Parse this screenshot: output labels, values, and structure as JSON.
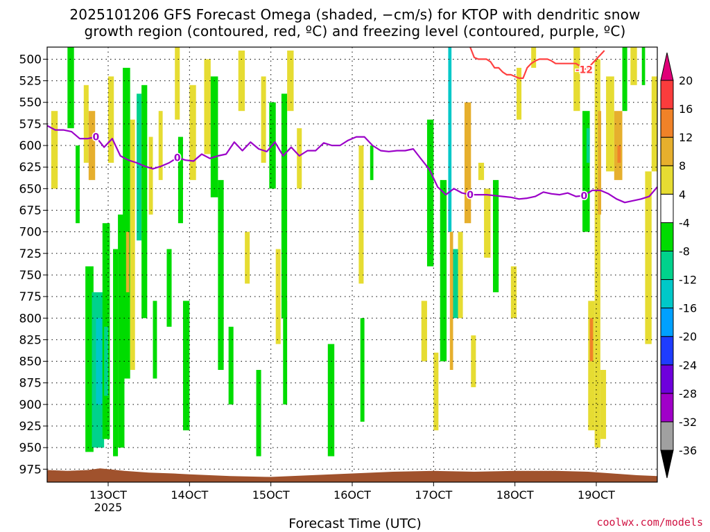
{
  "title_line1": "2025101206 GFS Forecast Omega (shaded, −cm/s) for KTOP with dendritic snow",
  "title_line2": "growth region (contoured, red, ºC) and freezing level (contoured, purple, ºC)",
  "credit": "coolwx.com/models",
  "chart_data": {
    "type": "heatmap",
    "title": "2025101206 GFS Forecast Omega (shaded, −cm/s) for KTOP with dendritic snow growth region (contoured, red, ºC) and freezing level (contoured, purple, ºC)",
    "xlabel": "Forecast Time (UTC)",
    "ylabel": "",
    "x_units": "day of month (October 2025)",
    "x_range": [
      12.25,
      19.75
    ],
    "x_ticks": [
      {
        "value": 13,
        "label": "13OCT",
        "sublabel": "2025"
      },
      {
        "value": 14,
        "label": "14OCT",
        "sublabel": ""
      },
      {
        "value": 15,
        "label": "15OCT",
        "sublabel": ""
      },
      {
        "value": 16,
        "label": "16OCT",
        "sublabel": ""
      },
      {
        "value": 17,
        "label": "17OCT",
        "sublabel": ""
      },
      {
        "value": 18,
        "label": "18OCT",
        "sublabel": ""
      },
      {
        "value": 19,
        "label": "19OCT",
        "sublabel": ""
      }
    ],
    "y_units": "hPa",
    "y_range": [
      486,
      990
    ],
    "y_ticks": [
      500,
      525,
      550,
      575,
      600,
      625,
      650,
      675,
      700,
      725,
      750,
      775,
      800,
      825,
      850,
      875,
      900,
      925,
      950,
      975
    ],
    "grid": "dotted",
    "colorbar": {
      "levels": [
        -36,
        -32,
        -28,
        -24,
        -20,
        -16,
        -12,
        -8,
        -4,
        4,
        8,
        12,
        16,
        20
      ],
      "colors": [
        "#000000",
        "#a0a0a0",
        "#a000c8",
        "#6e00dc",
        "#1e3cff",
        "#00a0ff",
        "#00c8c8",
        "#00d28c",
        "#00dc00",
        "#ffffff",
        "#e6dc32",
        "#e6af2d",
        "#f08228",
        "#fa3c3c",
        "#e00078"
      ],
      "under_color": "#000000",
      "over_color": "#e00078"
    },
    "omega_cells": [
      {
        "x0": 12.3,
        "x1": 12.38,
        "p0": 560,
        "p1": 650,
        "value": 6
      },
      {
        "x0": 12.5,
        "x1": 12.58,
        "p0": 480,
        "p1": 580,
        "value": -6
      },
      {
        "x0": 12.6,
        "x1": 12.65,
        "p0": 600,
        "p1": 690,
        "value": -6
      },
      {
        "x0": 12.7,
        "x1": 12.76,
        "p0": 530,
        "p1": 620,
        "value": 6
      },
      {
        "x0": 12.72,
        "x1": 12.82,
        "p0": 740,
        "p1": 955,
        "value": -7
      },
      {
        "x0": 12.76,
        "x1": 12.84,
        "p0": 560,
        "p1": 640,
        "value": 9
      },
      {
        "x0": 12.8,
        "x1": 12.95,
        "p0": 770,
        "p1": 950,
        "value": -10
      },
      {
        "x0": 12.85,
        "x1": 12.93,
        "p0": 800,
        "p1": 900,
        "value": -14
      },
      {
        "x0": 12.93,
        "x1": 13.02,
        "p0": 690,
        "p1": 940,
        "value": -7
      },
      {
        "x0": 12.95,
        "x1": 13.0,
        "p0": 810,
        "p1": 890,
        "value": -11
      },
      {
        "x0": 13.0,
        "x1": 13.07,
        "p0": 520,
        "p1": 620,
        "value": 6
      },
      {
        "x0": 13.06,
        "x1": 13.12,
        "p0": 720,
        "p1": 960,
        "value": -7
      },
      {
        "x0": 13.12,
        "x1": 13.2,
        "p0": 680,
        "p1": 950,
        "value": -7
      },
      {
        "x0": 13.18,
        "x1": 13.27,
        "p0": 510,
        "p1": 870,
        "value": -7
      },
      {
        "x0": 13.22,
        "x1": 13.26,
        "p0": 700,
        "p1": 770,
        "value": 10
      },
      {
        "x0": 13.27,
        "x1": 13.33,
        "p0": 570,
        "p1": 860,
        "value": 6
      },
      {
        "x0": 13.35,
        "x1": 13.41,
        "p0": 540,
        "p1": 710,
        "value": -9
      },
      {
        "x0": 13.41,
        "x1": 13.48,
        "p0": 530,
        "p1": 800,
        "value": -7
      },
      {
        "x0": 13.5,
        "x1": 13.55,
        "p0": 590,
        "p1": 680,
        "value": 5
      },
      {
        "x0": 13.55,
        "x1": 13.6,
        "p0": 780,
        "p1": 870,
        "value": -6
      },
      {
        "x0": 13.62,
        "x1": 13.67,
        "p0": 560,
        "p1": 640,
        "value": 5
      },
      {
        "x0": 13.72,
        "x1": 13.78,
        "p0": 720,
        "p1": 810,
        "value": -6
      },
      {
        "x0": 13.82,
        "x1": 13.88,
        "p0": 480,
        "p1": 570,
        "value": 6
      },
      {
        "x0": 13.86,
        "x1": 13.92,
        "p0": 590,
        "p1": 690,
        "value": -6
      },
      {
        "x0": 13.92,
        "x1": 14.0,
        "p0": 780,
        "p1": 930,
        "value": -6
      },
      {
        "x0": 14.0,
        "x1": 14.08,
        "p0": 530,
        "p1": 640,
        "value": 5
      },
      {
        "x0": 14.18,
        "x1": 14.26,
        "p0": 500,
        "p1": 610,
        "value": 5
      },
      {
        "x0": 14.26,
        "x1": 14.35,
        "p0": 520,
        "p1": 660,
        "value": -7
      },
      {
        "x0": 14.35,
        "x1": 14.42,
        "p0": 640,
        "p1": 860,
        "value": -7
      },
      {
        "x0": 14.48,
        "x1": 14.54,
        "p0": 810,
        "p1": 900,
        "value": -7
      },
      {
        "x0": 14.6,
        "x1": 14.68,
        "p0": 490,
        "p1": 560,
        "value": 6
      },
      {
        "x0": 14.68,
        "x1": 14.74,
        "p0": 700,
        "p1": 760,
        "value": 5
      },
      {
        "x0": 14.82,
        "x1": 14.88,
        "p0": 860,
        "p1": 960,
        "value": -6
      },
      {
        "x0": 14.88,
        "x1": 14.94,
        "p0": 520,
        "p1": 620,
        "value": 5
      },
      {
        "x0": 14.98,
        "x1": 15.06,
        "p0": 550,
        "p1": 650,
        "value": -6
      },
      {
        "x0": 15.06,
        "x1": 15.12,
        "p0": 720,
        "p1": 830,
        "value": 5
      },
      {
        "x0": 15.13,
        "x1": 15.2,
        "p0": 540,
        "p1": 800,
        "value": -7
      },
      {
        "x0": 15.15,
        "x1": 15.2,
        "p0": 780,
        "p1": 900,
        "value": -6
      },
      {
        "x0": 15.2,
        "x1": 15.28,
        "p0": 490,
        "p1": 560,
        "value": 6
      },
      {
        "x0": 15.32,
        "x1": 15.38,
        "p0": 580,
        "p1": 650,
        "value": 5
      },
      {
        "x0": 15.7,
        "x1": 15.78,
        "p0": 830,
        "p1": 960,
        "value": -6
      },
      {
        "x0": 16.08,
        "x1": 16.14,
        "p0": 600,
        "p1": 760,
        "value": 5
      },
      {
        "x0": 16.1,
        "x1": 16.15,
        "p0": 800,
        "p1": 920,
        "value": -6
      },
      {
        "x0": 16.22,
        "x1": 16.26,
        "p0": 600,
        "p1": 640,
        "value": -5
      },
      {
        "x0": 16.85,
        "x1": 16.92,
        "p0": 780,
        "p1": 850,
        "value": 5
      },
      {
        "x0": 16.92,
        "x1": 17.0,
        "p0": 570,
        "p1": 740,
        "value": -7
      },
      {
        "x0": 17.0,
        "x1": 17.06,
        "p0": 840,
        "p1": 930,
        "value": 6
      },
      {
        "x0": 17.08,
        "x1": 17.16,
        "p0": 640,
        "p1": 850,
        "value": -7
      },
      {
        "x0": 17.18,
        "x1": 17.22,
        "p0": 480,
        "p1": 700,
        "value": -14
      },
      {
        "x0": 17.2,
        "x1": 17.24,
        "p0": 700,
        "p1": 860,
        "value": 10
      },
      {
        "x0": 17.24,
        "x1": 17.3,
        "p0": 720,
        "p1": 800,
        "value": -10
      },
      {
        "x0": 17.3,
        "x1": 17.36,
        "p0": 700,
        "p1": 800,
        "value": 5
      },
      {
        "x0": 17.38,
        "x1": 17.46,
        "p0": 550,
        "p1": 690,
        "value": 10
      },
      {
        "x0": 17.46,
        "x1": 17.52,
        "p0": 820,
        "p1": 880,
        "value": 5
      },
      {
        "x0": 17.55,
        "x1": 17.62,
        "p0": 620,
        "p1": 640,
        "value": 6
      },
      {
        "x0": 17.62,
        "x1": 17.7,
        "p0": 650,
        "p1": 730,
        "value": 6
      },
      {
        "x0": 17.73,
        "x1": 17.8,
        "p0": 640,
        "p1": 770,
        "value": -7
      },
      {
        "x0": 17.95,
        "x1": 18.02,
        "p0": 740,
        "p1": 800,
        "value": 5
      },
      {
        "x0": 18.02,
        "x1": 18.08,
        "p0": 510,
        "p1": 570,
        "value": 5
      },
      {
        "x0": 18.2,
        "x1": 18.26,
        "p0": 480,
        "p1": 510,
        "value": 6
      },
      {
        "x0": 18.72,
        "x1": 18.8,
        "p0": 480,
        "p1": 560,
        "value": 5
      },
      {
        "x0": 18.83,
        "x1": 18.92,
        "p0": 560,
        "p1": 700,
        "value": -7
      },
      {
        "x0": 18.88,
        "x1": 18.92,
        "p0": 580,
        "p1": 620,
        "value": -11
      },
      {
        "x0": 18.9,
        "x1": 18.98,
        "p0": 780,
        "p1": 930,
        "value": 6
      },
      {
        "x0": 18.92,
        "x1": 18.96,
        "p0": 800,
        "p1": 850,
        "value": 14
      },
      {
        "x0": 18.98,
        "x1": 19.05,
        "p0": 500,
        "p1": 950,
        "value": 7
      },
      {
        "x0": 19.02,
        "x1": 19.06,
        "p0": 560,
        "p1": 680,
        "value": 10
      },
      {
        "x0": 19.05,
        "x1": 19.12,
        "p0": 860,
        "p1": 940,
        "value": 6
      },
      {
        "x0": 19.12,
        "x1": 19.22,
        "p0": 520,
        "p1": 630,
        "value": 6
      },
      {
        "x0": 19.22,
        "x1": 19.32,
        "p0": 560,
        "p1": 640,
        "value": 10
      },
      {
        "x0": 19.26,
        "x1": 19.3,
        "p0": 600,
        "p1": 620,
        "value": 14
      },
      {
        "x0": 19.32,
        "x1": 19.38,
        "p0": 480,
        "p1": 560,
        "value": -7
      },
      {
        "x0": 19.42,
        "x1": 19.5,
        "p0": 480,
        "p1": 530,
        "value": 6
      },
      {
        "x0": 19.56,
        "x1": 19.6,
        "p0": 480,
        "p1": 530,
        "value": -7
      },
      {
        "x0": 19.6,
        "x1": 19.68,
        "p0": 630,
        "p1": 830,
        "value": 6
      },
      {
        "x0": 19.68,
        "x1": 19.75,
        "p0": 520,
        "p1": 630,
        "value": 6
      }
    ],
    "freezing_level": {
      "label": "0",
      "color": "#9b00c8",
      "x": [
        12.25,
        12.35,
        12.45,
        12.55,
        12.65,
        12.75,
        12.85,
        12.95,
        13.05,
        13.15,
        13.25,
        13.35,
        13.45,
        13.55,
        13.65,
        13.75,
        13.85,
        13.95,
        14.05,
        14.15,
        14.25,
        14.35,
        14.45,
        14.55,
        14.65,
        14.75,
        14.85,
        14.95,
        15.05,
        15.15,
        15.25,
        15.35,
        15.45,
        15.55,
        15.65,
        15.75,
        15.85,
        15.95,
        16.05,
        16.15,
        16.25,
        16.35,
        16.45,
        16.55,
        16.65,
        16.75,
        16.85,
        16.95,
        17.05,
        17.15,
        17.25,
        17.35,
        17.45,
        17.55,
        17.65,
        17.75,
        17.85,
        17.95,
        18.05,
        18.15,
        18.25,
        18.35,
        18.45,
        18.55,
        18.65,
        18.75,
        18.85,
        18.95,
        19.05,
        19.15,
        19.25,
        19.35,
        19.45,
        19.55,
        19.65,
        19.75
      ],
      "p": [
        577,
        582,
        582,
        584,
        592,
        592,
        590,
        602,
        592,
        612,
        617,
        620,
        624,
        627,
        624,
        620,
        614,
        617,
        618,
        610,
        615,
        612,
        610,
        596,
        606,
        596,
        604,
        607,
        596,
        612,
        602,
        612,
        606,
        606,
        597,
        600,
        600,
        594,
        590,
        590,
        600,
        606,
        607,
        606,
        606,
        604,
        616,
        628,
        648,
        657,
        650,
        655,
        657,
        657,
        657,
        658,
        659,
        660,
        662,
        661,
        659,
        654,
        656,
        657,
        655,
        659,
        658,
        652,
        652,
        656,
        662,
        666,
        664,
        662,
        659,
        648
      ]
    },
    "dendritic_contour": {
      "label": "-12",
      "color": "#ff4040",
      "x": [
        17.45,
        17.5,
        17.55,
        17.6,
        17.65,
        17.7,
        17.75,
        17.8,
        17.85,
        17.9,
        17.95,
        18.0,
        18.05,
        18.1,
        18.15,
        18.2,
        18.25,
        18.3,
        18.35,
        18.4,
        18.45,
        18.5,
        18.55,
        18.6,
        18.65,
        18.7,
        18.75,
        18.8,
        18.85,
        18.9,
        18.95,
        19.0,
        19.05,
        19.1
      ],
      "p": [
        486,
        498,
        500,
        500,
        500,
        503,
        510,
        510,
        515,
        518,
        518,
        520,
        522,
        522,
        510,
        505,
        502,
        500,
        500,
        500,
        502,
        505,
        505,
        505,
        505,
        505,
        505,
        508,
        512,
        510,
        505,
        500,
        495,
        490
      ]
    },
    "terrain": {
      "color": "#a0522d",
      "x": [
        12.25,
        12.5,
        12.75,
        12.9,
        13.0,
        13.2,
        13.5,
        13.8,
        14.0,
        14.5,
        15.0,
        15.5,
        16.0,
        16.5,
        17.0,
        17.5,
        18.0,
        18.5,
        18.9,
        19.2,
        19.5,
        19.75
      ],
      "p": [
        976,
        977,
        976,
        974,
        975,
        977,
        979,
        980,
        981,
        983,
        984,
        982,
        980,
        978,
        977,
        978,
        977,
        977,
        978,
        980,
        982,
        983
      ]
    }
  }
}
